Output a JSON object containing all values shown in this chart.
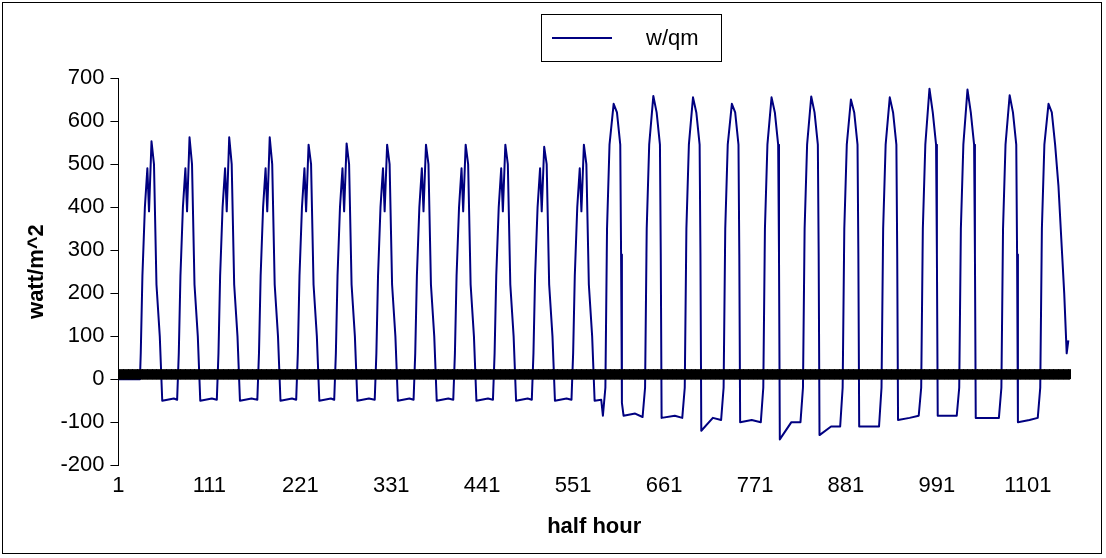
{
  "chart_data": {
    "type": "line",
    "xlabel": "half hour",
    "ylabel": "watt/m^2",
    "legend": "top",
    "xlim": [
      1,
      1152
    ],
    "xticks": [
      1,
      111,
      221,
      331,
      441,
      551,
      661,
      771,
      881,
      991,
      1101
    ],
    "ylim": [
      -200,
      700
    ],
    "yticks": [
      -200,
      -100,
      0,
      100,
      200,
      300,
      400,
      500,
      600,
      700
    ],
    "series": [
      {
        "name": "w/qm",
        "color": "#000080",
        "x": [
          1,
          27,
          28,
          30,
          33,
          36,
          38,
          41,
          44,
          47,
          51,
          54,
          68,
          72,
          74,
          76,
          79,
          82,
          84,
          87,
          90,
          93,
          97,
          100,
          114,
          120,
          122,
          124,
          127,
          130,
          132,
          135,
          138,
          141,
          145,
          148,
          162,
          169,
          171,
          173,
          176,
          179,
          181,
          184,
          187,
          190,
          194,
          197,
          211,
          216,
          218,
          220,
          223,
          226,
          228,
          231,
          234,
          237,
          241,
          244,
          258,
          262,
          264,
          266,
          269,
          272,
          274,
          277,
          280,
          283,
          287,
          290,
          304,
          311,
          313,
          315,
          318,
          321,
          323,
          326,
          329,
          332,
          336,
          339,
          353,
          358,
          360,
          362,
          365,
          368,
          370,
          373,
          376,
          379,
          383,
          386,
          400,
          406,
          408,
          410,
          413,
          416,
          418,
          421,
          424,
          427,
          431,
          434,
          448,
          454,
          456,
          458,
          461,
          464,
          466,
          469,
          472,
          475,
          479,
          482,
          496,
          501,
          503,
          505,
          508,
          511,
          513,
          516,
          519,
          522,
          526,
          529,
          543,
          549,
          551,
          553,
          556,
          559,
          561,
          564,
          567,
          570,
          574,
          577,
          585,
          587,
          590,
          592,
          595,
          600,
          604,
          608,
          609,
          610,
          612,
          626,
          635,
          638,
          640,
          643,
          648,
          652,
          656,
          657,
          658,
          674,
          683,
          686,
          688,
          691,
          696,
          700,
          704,
          705,
          706,
          720,
          730,
          733,
          735,
          738,
          743,
          747,
          751,
          752,
          753,
          767,
          778,
          781,
          783,
          786,
          791,
          795,
          799,
          800,
          801,
          815,
          826,
          829,
          831,
          834,
          839,
          843,
          847,
          848,
          849,
          863,
          874,
          877,
          879,
          882,
          887,
          891,
          895,
          896,
          897,
          911,
          921,
          924,
          926,
          929,
          934,
          938,
          942,
          943,
          944,
          958,
          969,
          972,
          974,
          977,
          982,
          986,
          990,
          991,
          992,
          1006,
          1015,
          1018,
          1020,
          1023,
          1028,
          1032,
          1036,
          1037,
          1038,
          1052,
          1066,
          1069,
          1071,
          1074,
          1079,
          1083,
          1087,
          1088,
          1089,
          1103,
          1113,
          1116,
          1118,
          1121,
          1126,
          1130,
          1134,
          1138,
          1145,
          1148,
          1150
        ],
        "values": [
          0,
          0,
          60,
          240,
          400,
          490,
          390,
          553,
          500,
          220,
          100,
          -50,
          -45,
          -48,
          60,
          240,
          400,
          490,
          390,
          562,
          500,
          220,
          100,
          -50,
          -45,
          -48,
          60,
          240,
          400,
          490,
          390,
          562,
          500,
          220,
          100,
          -50,
          -45,
          -48,
          60,
          240,
          400,
          490,
          390,
          562,
          500,
          220,
          100,
          -50,
          -45,
          -48,
          60,
          240,
          400,
          490,
          390,
          545,
          500,
          220,
          100,
          -50,
          -45,
          -48,
          60,
          240,
          400,
          490,
          390,
          548,
          500,
          220,
          100,
          -50,
          -45,
          -48,
          60,
          240,
          400,
          490,
          390,
          545,
          500,
          220,
          100,
          -50,
          -45,
          -48,
          60,
          240,
          400,
          490,
          390,
          545,
          500,
          220,
          100,
          -50,
          -45,
          -48,
          60,
          240,
          400,
          490,
          390,
          545,
          500,
          220,
          100,
          -50,
          -45,
          -48,
          60,
          240,
          400,
          490,
          390,
          545,
          500,
          220,
          100,
          -50,
          -45,
          -48,
          60,
          240,
          400,
          490,
          390,
          540,
          500,
          220,
          100,
          -50,
          -45,
          -48,
          60,
          240,
          400,
          490,
          390,
          545,
          500,
          220,
          100,
          -50,
          -48,
          -85,
          -20,
          350,
          545,
          640,
          620,
          545,
          290,
          -55,
          -85,
          -80,
          -88,
          -20,
          350,
          545,
          658,
          620,
          545,
          290,
          -90,
          -85,
          -90,
          -20,
          350,
          545,
          655,
          620,
          545,
          290,
          -120,
          -90,
          -95,
          -20,
          350,
          545,
          640,
          620,
          545,
          290,
          -100,
          -95,
          -100,
          -20,
          350,
          545,
          655,
          620,
          545,
          290,
          -140,
          -100,
          -100,
          -20,
          350,
          545,
          657,
          620,
          545,
          290,
          -130,
          -110,
          -110,
          -20,
          350,
          545,
          650,
          620,
          545,
          290,
          -110,
          -110,
          -110,
          -20,
          350,
          545,
          655,
          620,
          545,
          290,
          -95,
          -90,
          -85,
          -20,
          350,
          545,
          675,
          620,
          545,
          290,
          -85,
          -85,
          -85,
          -20,
          350,
          545,
          673,
          620,
          545,
          290,
          -90,
          -90,
          -90,
          -20,
          350,
          545,
          660,
          620,
          545,
          290,
          -100,
          -95,
          -90,
          -20,
          350,
          545,
          640,
          620,
          545,
          450,
          200,
          60,
          90
        ]
      }
    ]
  }
}
